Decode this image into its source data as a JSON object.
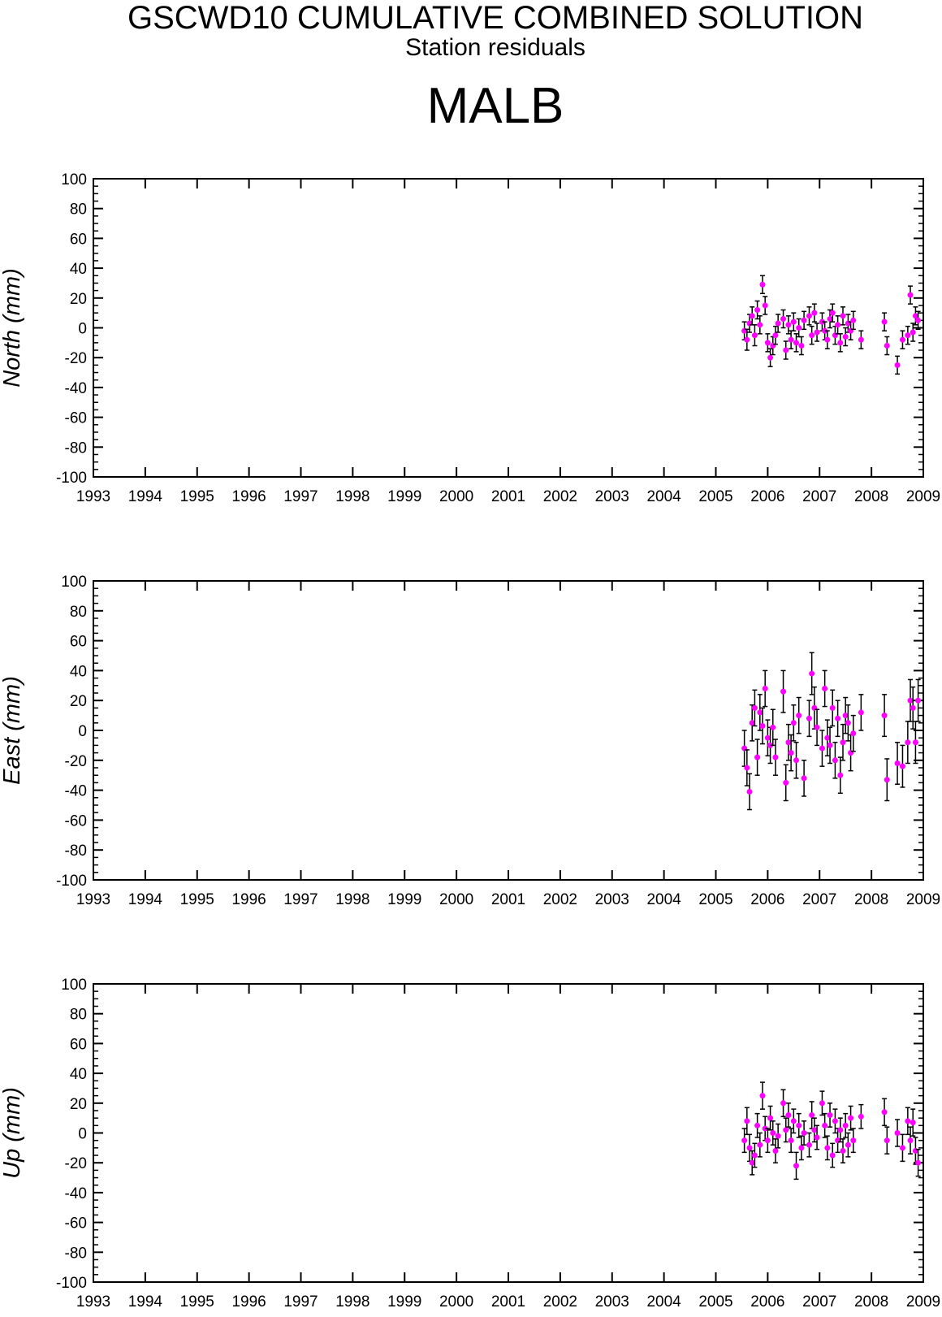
{
  "header": {
    "title": "GSCWD10 CUMULATIVE COMBINED SOLUTION",
    "subtitle": "Station residuals",
    "station": "MALB"
  },
  "colors": {
    "point": "#ff00ff",
    "errorbar": "#000000",
    "axis": "#000000"
  },
  "chart_data": [
    {
      "type": "scatter",
      "ylabel": "North (mm)",
      "xlim": [
        1993,
        2009
      ],
      "ylim": [
        -100,
        100
      ],
      "x_ticks": [
        1993,
        1994,
        1995,
        1996,
        1997,
        1998,
        1999,
        2000,
        2001,
        2002,
        2003,
        2004,
        2005,
        2006,
        2007,
        2008,
        2009
      ],
      "y_ticks": [
        100,
        80,
        60,
        40,
        20,
        0,
        -20,
        -40,
        -60,
        -80,
        -100
      ],
      "x": [
        2005.55,
        2005.6,
        2005.65,
        2005.7,
        2005.75,
        2005.8,
        2005.85,
        2005.9,
        2005.95,
        2006.0,
        2006.05,
        2006.1,
        2006.15,
        2006.2,
        2006.3,
        2006.35,
        2006.4,
        2006.45,
        2006.5,
        2006.55,
        2006.6,
        2006.65,
        2006.7,
        2006.8,
        2006.85,
        2006.9,
        2006.95,
        2007.05,
        2007.1,
        2007.15,
        2007.2,
        2007.25,
        2007.3,
        2007.35,
        2007.4,
        2007.45,
        2007.5,
        2007.55,
        2007.6,
        2007.65,
        2007.8,
        2008.25,
        2008.3,
        2008.5,
        2008.6,
        2008.7,
        2008.75,
        2008.8,
        2008.85,
        2008.9
      ],
      "y": [
        -2,
        -8,
        3,
        8,
        -5,
        12,
        2,
        29,
        15,
        -10,
        -20,
        -12,
        -5,
        3,
        6,
        -15,
        2,
        -8,
        4,
        -10,
        0,
        -12,
        5,
        8,
        -5,
        10,
        -3,
        4,
        -2,
        -8,
        6,
        10,
        -5,
        2,
        -10,
        8,
        -6,
        3,
        -2,
        5,
        -8,
        4,
        -12,
        -25,
        -8,
        -5,
        22,
        -3,
        8,
        5
      ],
      "err": [
        6,
        7,
        6,
        6,
        7,
        6,
        6,
        6,
        6,
        6,
        6,
        6,
        6,
        6,
        6,
        6,
        6,
        6,
        6,
        6,
        6,
        6,
        6,
        6,
        6,
        6,
        6,
        6,
        6,
        6,
        6,
        6,
        6,
        6,
        6,
        6,
        6,
        6,
        6,
        6,
        6,
        6,
        6,
        6,
        6,
        6,
        6,
        6,
        6,
        6
      ]
    },
    {
      "type": "scatter",
      "ylabel": "East (mm)",
      "xlim": [
        1993,
        2009
      ],
      "ylim": [
        -100,
        100
      ],
      "x_ticks": [
        1993,
        1994,
        1995,
        1996,
        1997,
        1998,
        1999,
        2000,
        2001,
        2002,
        2003,
        2004,
        2005,
        2006,
        2007,
        2008,
        2009
      ],
      "y_ticks": [
        100,
        80,
        60,
        40,
        20,
        0,
        -20,
        -40,
        -60,
        -80,
        -100
      ],
      "x": [
        2005.55,
        2005.6,
        2005.65,
        2005.7,
        2005.75,
        2005.8,
        2005.85,
        2005.9,
        2005.95,
        2006.0,
        2006.05,
        2006.1,
        2006.15,
        2006.3,
        2006.35,
        2006.4,
        2006.45,
        2006.5,
        2006.55,
        2006.6,
        2006.7,
        2006.8,
        2006.85,
        2006.9,
        2006.95,
        2007.05,
        2007.1,
        2007.15,
        2007.2,
        2007.25,
        2007.3,
        2007.35,
        2007.4,
        2007.45,
        2007.5,
        2007.55,
        2007.6,
        2007.65,
        2007.8,
        2008.25,
        2008.3,
        2008.5,
        2008.6,
        2008.7,
        2008.75,
        2008.8,
        2008.85,
        2008.9
      ],
      "y": [
        -12,
        -25,
        -41,
        5,
        15,
        -18,
        12,
        3,
        28,
        -5,
        -10,
        2,
        -18,
        26,
        -35,
        -8,
        -15,
        5,
        -20,
        10,
        -32,
        8,
        38,
        15,
        2,
        -12,
        28,
        -5,
        -10,
        15,
        -20,
        8,
        -30,
        -8,
        10,
        5,
        -15,
        -2,
        12,
        10,
        -33,
        -22,
        -24,
        -8,
        20,
        15,
        -8,
        20
      ],
      "err": [
        12,
        12,
        12,
        12,
        12,
        12,
        12,
        12,
        12,
        12,
        12,
        12,
        12,
        14,
        12,
        12,
        12,
        12,
        12,
        12,
        12,
        12,
        14,
        14,
        12,
        12,
        12,
        12,
        12,
        12,
        12,
        12,
        12,
        12,
        12,
        12,
        12,
        12,
        12,
        14,
        14,
        14,
        14,
        14,
        14,
        14,
        14,
        14
      ]
    },
    {
      "type": "scatter",
      "ylabel": "Up (mm)",
      "xlim": [
        1993,
        2009
      ],
      "ylim": [
        -100,
        100
      ],
      "x_ticks": [
        1993,
        1994,
        1995,
        1996,
        1997,
        1998,
        1999,
        2000,
        2001,
        2002,
        2003,
        2004,
        2005,
        2006,
        2007,
        2008,
        2009
      ],
      "y_ticks": [
        100,
        80,
        60,
        40,
        20,
        0,
        -20,
        -40,
        -60,
        -80,
        -100
      ],
      "x": [
        2005.55,
        2005.6,
        2005.65,
        2005.7,
        2005.75,
        2005.8,
        2005.85,
        2005.9,
        2005.95,
        2006.0,
        2006.05,
        2006.1,
        2006.15,
        2006.2,
        2006.3,
        2006.35,
        2006.4,
        2006.45,
        2006.5,
        2006.55,
        2006.6,
        2006.65,
        2006.7,
        2006.8,
        2006.85,
        2006.9,
        2006.95,
        2007.05,
        2007.1,
        2007.15,
        2007.2,
        2007.25,
        2007.3,
        2007.35,
        2007.4,
        2007.45,
        2007.5,
        2007.55,
        2007.6,
        2007.65,
        2007.8,
        2008.25,
        2008.3,
        2008.5,
        2008.6,
        2008.7,
        2008.75,
        2008.8,
        2008.85,
        2008.9
      ],
      "y": [
        -5,
        8,
        -10,
        -20,
        -15,
        5,
        -8,
        25,
        3,
        -5,
        10,
        0,
        -12,
        -2,
        20,
        2,
        12,
        -5,
        8,
        -22,
        5,
        -10,
        0,
        -8,
        12,
        2,
        -3,
        20,
        5,
        -10,
        12,
        -15,
        8,
        -5,
        2,
        -12,
        5,
        -8,
        10,
        -5,
        11,
        14,
        -5,
        0,
        -10,
        8,
        -5,
        7,
        -12,
        -20
      ],
      "err": [
        8,
        9,
        9,
        8,
        8,
        8,
        8,
        9,
        8,
        8,
        8,
        8,
        8,
        8,
        9,
        8,
        8,
        8,
        8,
        9,
        8,
        8,
        8,
        8,
        9,
        8,
        8,
        8,
        8,
        8,
        8,
        8,
        8,
        8,
        8,
        8,
        8,
        8,
        8,
        8,
        8,
        9,
        9,
        9,
        9,
        9,
        9,
        9,
        9,
        9
      ]
    }
  ]
}
